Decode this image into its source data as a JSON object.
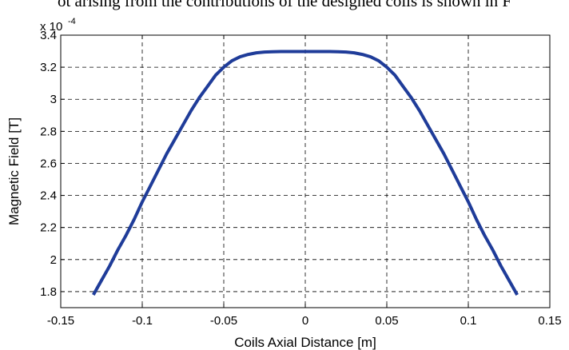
{
  "header_text": "ot arising from the contributions of the designed coils is shown in F",
  "chart_data": {
    "type": "line",
    "title": "",
    "xlabel": "Coils Axial Distance [m]",
    "ylabel": "Magnetic Field [T]",
    "y_exponent_label": "x 10",
    "y_exponent_power": "-4",
    "xlim": [
      -0.15,
      0.15
    ],
    "ylim": [
      1.7,
      3.4
    ],
    "x_ticks": [
      -0.15,
      -0.1,
      -0.05,
      0,
      0.05,
      0.1,
      0.15
    ],
    "x_tick_labels": [
      "-0.15",
      "-0.1",
      "-0.05",
      "0",
      "0.05",
      "0.1",
      "0.15"
    ],
    "y_ticks": [
      1.8,
      2.0,
      2.2,
      2.4,
      2.6,
      2.8,
      3.0,
      3.2,
      3.4
    ],
    "y_tick_labels": [
      "1.8",
      "2",
      "2.2",
      "2.4",
      "2.6",
      "2.8",
      "3",
      "3.2",
      "3.4"
    ],
    "grid": true,
    "line_color": "#1f3c99",
    "series": [
      {
        "x": [
          -0.13,
          -0.125,
          -0.12,
          -0.115,
          -0.11,
          -0.105,
          -0.1,
          -0.095,
          -0.09,
          -0.085,
          -0.08,
          -0.075,
          -0.07,
          -0.065,
          -0.06,
          -0.055,
          -0.05,
          -0.045,
          -0.04,
          -0.035,
          -0.03,
          -0.025,
          -0.02,
          -0.015,
          -0.01,
          -0.005,
          0,
          0.005,
          0.01,
          0.015,
          0.02,
          0.025,
          0.03,
          0.035,
          0.04,
          0.045,
          0.05,
          0.055,
          0.06,
          0.065,
          0.07,
          0.075,
          0.08,
          0.085,
          0.09,
          0.095,
          0.1,
          0.105,
          0.11,
          0.115,
          0.12,
          0.125,
          0.13
        ],
        "y": [
          1.78,
          1.87,
          1.96,
          2.06,
          2.15,
          2.25,
          2.36,
          2.46,
          2.56,
          2.66,
          2.75,
          2.84,
          2.93,
          3.01,
          3.08,
          3.15,
          3.2,
          3.24,
          3.265,
          3.28,
          3.29,
          3.295,
          3.297,
          3.298,
          3.298,
          3.298,
          3.298,
          3.298,
          3.298,
          3.298,
          3.297,
          3.295,
          3.29,
          3.28,
          3.265,
          3.24,
          3.2,
          3.15,
          3.08,
          3.01,
          2.93,
          2.84,
          2.75,
          2.66,
          2.56,
          2.46,
          2.36,
          2.25,
          2.15,
          2.06,
          1.96,
          1.87,
          1.78
        ]
      }
    ]
  }
}
